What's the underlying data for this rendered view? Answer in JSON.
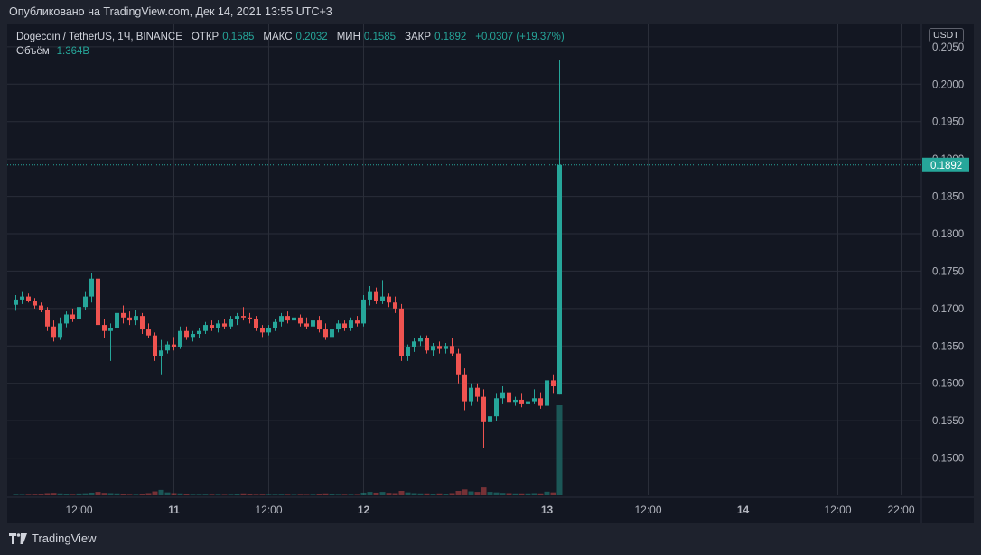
{
  "header": {
    "published": "Опубликовано на TradingView.com, Дек 14, 2021 13:55 UTC+3"
  },
  "legend": {
    "symbol": "Dogecoin / TetherUS, 1Ч, BINANCE",
    "open_label": "ОТКР",
    "open": "0.1585",
    "high_label": "МАКС",
    "high": "0.2032",
    "low_label": "МИН",
    "low": "0.1585",
    "close_label": "ЗАКР",
    "close": "0.1892",
    "change": "+0.0307 (+19.37%)",
    "volume_label": "Объём",
    "volume": "1.364B"
  },
  "currency_button": "USDT",
  "last_price_label": "0.1892",
  "footer": {
    "brand": "TradingView"
  },
  "colors": {
    "up": "#26a69a",
    "down": "#ef5350",
    "background": "#131722",
    "grid": "#2a2e39"
  },
  "chart_data": {
    "type": "candlestick",
    "ylim": [
      0.145,
      0.208
    ],
    "y_ticks": [
      0.15,
      0.155,
      0.16,
      0.165,
      0.17,
      0.175,
      0.18,
      0.185,
      0.19,
      0.195,
      0.2,
      0.205
    ],
    "x_tick_labels": [
      {
        "label": "12:00",
        "index": 10
      },
      {
        "label": "11",
        "index": 25
      },
      {
        "label": "12:00",
        "index": 40
      },
      {
        "label": "12",
        "index": 55
      },
      {
        "label": "13",
        "index": 84
      },
      {
        "label": "12:00",
        "index": 100
      },
      {
        "label": "14",
        "index": 115
      },
      {
        "label": "12:00",
        "index": 130
      },
      {
        "label": "22:00",
        "index": 140
      }
    ],
    "last_price": 0.1892,
    "candles": [
      [
        0.1705,
        0.1718,
        0.1697,
        0.1712
      ],
      [
        0.1712,
        0.1722,
        0.1706,
        0.1716
      ],
      [
        0.1716,
        0.172,
        0.1708,
        0.171
      ],
      [
        0.171,
        0.1714,
        0.17,
        0.1704
      ],
      [
        0.1704,
        0.1708,
        0.1695,
        0.1698
      ],
      [
        0.1698,
        0.1702,
        0.167,
        0.1676
      ],
      [
        0.1676,
        0.1684,
        0.1656,
        0.1662
      ],
      [
        0.1662,
        0.1688,
        0.1658,
        0.168
      ],
      [
        0.168,
        0.1696,
        0.1675,
        0.1692
      ],
      [
        0.1692,
        0.17,
        0.1682,
        0.1686
      ],
      [
        0.1686,
        0.1708,
        0.1683,
        0.1702
      ],
      [
        0.1702,
        0.1722,
        0.1698,
        0.1716
      ],
      [
        0.1716,
        0.1748,
        0.1708,
        0.174
      ],
      [
        0.174,
        0.1746,
        0.1672,
        0.1678
      ],
      [
        0.1678,
        0.1686,
        0.166,
        0.167
      ],
      [
        0.167,
        0.168,
        0.163,
        0.1674
      ],
      [
        0.1674,
        0.17,
        0.1668,
        0.1694
      ],
      [
        0.1694,
        0.1704,
        0.168,
        0.1688
      ],
      [
        0.1688,
        0.1696,
        0.1678,
        0.1684
      ],
      [
        0.1684,
        0.1698,
        0.1678,
        0.169
      ],
      [
        0.169,
        0.1694,
        0.1666,
        0.1672
      ],
      [
        0.1672,
        0.168,
        0.166,
        0.1664
      ],
      [
        0.1664,
        0.1668,
        0.163,
        0.1636
      ],
      [
        0.1636,
        0.1658,
        0.1612,
        0.1644
      ],
      [
        0.1644,
        0.1656,
        0.164,
        0.1652
      ],
      [
        0.1652,
        0.1662,
        0.1644,
        0.1648
      ],
      [
        0.1648,
        0.1676,
        0.1646,
        0.167
      ],
      [
        0.167,
        0.1676,
        0.1658,
        0.1662
      ],
      [
        0.1662,
        0.167,
        0.1656,
        0.1666
      ],
      [
        0.1666,
        0.1674,
        0.166,
        0.167
      ],
      [
        0.167,
        0.1682,
        0.1666,
        0.1678
      ],
      [
        0.1678,
        0.1684,
        0.167,
        0.1674
      ],
      [
        0.1674,
        0.1684,
        0.1668,
        0.168
      ],
      [
        0.168,
        0.1686,
        0.1672,
        0.1676
      ],
      [
        0.1676,
        0.169,
        0.1672,
        0.1686
      ],
      [
        0.1686,
        0.1694,
        0.1678,
        0.169
      ],
      [
        0.169,
        0.1702,
        0.1684,
        0.1688
      ],
      [
        0.1688,
        0.1694,
        0.168,
        0.1686
      ],
      [
        0.1686,
        0.169,
        0.167,
        0.1674
      ],
      [
        0.1674,
        0.1678,
        0.1662,
        0.1668
      ],
      [
        0.1668,
        0.1678,
        0.1664,
        0.1674
      ],
      [
        0.1674,
        0.1686,
        0.167,
        0.1682
      ],
      [
        0.1682,
        0.1694,
        0.1676,
        0.169
      ],
      [
        0.169,
        0.1696,
        0.168,
        0.1684
      ],
      [
        0.1684,
        0.1694,
        0.1678,
        0.1688
      ],
      [
        0.1688,
        0.1692,
        0.1676,
        0.168
      ],
      [
        0.168,
        0.1688,
        0.1672,
        0.1676
      ],
      [
        0.1676,
        0.169,
        0.1672,
        0.1684
      ],
      [
        0.1684,
        0.169,
        0.1668,
        0.1672
      ],
      [
        0.1672,
        0.168,
        0.1658,
        0.1662
      ],
      [
        0.1662,
        0.1676,
        0.1656,
        0.1672
      ],
      [
        0.1672,
        0.1684,
        0.1668,
        0.168
      ],
      [
        0.168,
        0.1684,
        0.167,
        0.1674
      ],
      [
        0.1674,
        0.1688,
        0.167,
        0.1684
      ],
      [
        0.1684,
        0.169,
        0.1676,
        0.168
      ],
      [
        0.168,
        0.1718,
        0.1676,
        0.1712
      ],
      [
        0.1712,
        0.173,
        0.1704,
        0.1722
      ],
      [
        0.1722,
        0.1728,
        0.1706,
        0.171
      ],
      [
        0.171,
        0.1738,
        0.1706,
        0.1716
      ],
      [
        0.1716,
        0.172,
        0.1702,
        0.1708
      ],
      [
        0.1708,
        0.1716,
        0.1694,
        0.17
      ],
      [
        0.17,
        0.1706,
        0.163,
        0.1636
      ],
      [
        0.1636,
        0.1652,
        0.163,
        0.1648
      ],
      [
        0.1648,
        0.166,
        0.1642,
        0.1656
      ],
      [
        0.1656,
        0.1664,
        0.165,
        0.166
      ],
      [
        0.166,
        0.1664,
        0.164,
        0.1644
      ],
      [
        0.1644,
        0.1654,
        0.1636,
        0.165
      ],
      [
        0.165,
        0.1656,
        0.164,
        0.1646
      ],
      [
        0.1646,
        0.1654,
        0.164,
        0.165
      ],
      [
        0.165,
        0.166,
        0.1636,
        0.164
      ],
      [
        0.164,
        0.1646,
        0.16,
        0.1612
      ],
      [
        0.1612,
        0.162,
        0.1564,
        0.1576
      ],
      [
        0.1576,
        0.16,
        0.157,
        0.1594
      ],
      [
        0.1594,
        0.16,
        0.1576,
        0.1582
      ],
      [
        0.1582,
        0.1592,
        0.1514,
        0.1548
      ],
      [
        0.1548,
        0.156,
        0.154,
        0.1556
      ],
      [
        0.1556,
        0.1586,
        0.155,
        0.158
      ],
      [
        0.158,
        0.1596,
        0.1572,
        0.1588
      ],
      [
        0.1588,
        0.1596,
        0.157,
        0.1574
      ],
      [
        0.1574,
        0.1582,
        0.157,
        0.1578
      ],
      [
        0.1578,
        0.1586,
        0.1568,
        0.1572
      ],
      [
        0.1572,
        0.1584,
        0.1568,
        0.1576
      ],
      [
        0.1576,
        0.1592,
        0.1572,
        0.158
      ],
      [
        0.158,
        0.1588,
        0.1566,
        0.157
      ],
      [
        0.157,
        0.1608,
        0.155,
        0.1604
      ],
      [
        0.1604,
        0.1612,
        0.1586,
        0.1596
      ],
      [
        0.1585,
        0.2032,
        0.1585,
        0.1892
      ]
    ],
    "volumes": [
      0.3,
      0.28,
      0.3,
      0.32,
      0.34,
      0.45,
      0.5,
      0.4,
      0.35,
      0.3,
      0.38,
      0.42,
      0.55,
      0.7,
      0.5,
      0.45,
      0.4,
      0.35,
      0.3,
      0.3,
      0.35,
      0.45,
      0.8,
      1.1,
      0.6,
      0.45,
      0.4,
      0.35,
      0.3,
      0.3,
      0.32,
      0.3,
      0.3,
      0.28,
      0.3,
      0.35,
      0.4,
      0.35,
      0.3,
      0.32,
      0.3,
      0.3,
      0.32,
      0.3,
      0.28,
      0.3,
      0.28,
      0.3,
      0.35,
      0.4,
      0.35,
      0.3,
      0.3,
      0.3,
      0.28,
      0.55,
      0.7,
      0.55,
      0.7,
      0.5,
      0.45,
      0.9,
      0.6,
      0.45,
      0.4,
      0.4,
      0.35,
      0.4,
      0.35,
      0.45,
      0.9,
      1.2,
      0.8,
      0.7,
      1.6,
      0.7,
      0.6,
      0.5,
      0.45,
      0.4,
      0.4,
      0.4,
      0.45,
      0.4,
      0.75,
      0.6,
      18.0
    ]
  }
}
